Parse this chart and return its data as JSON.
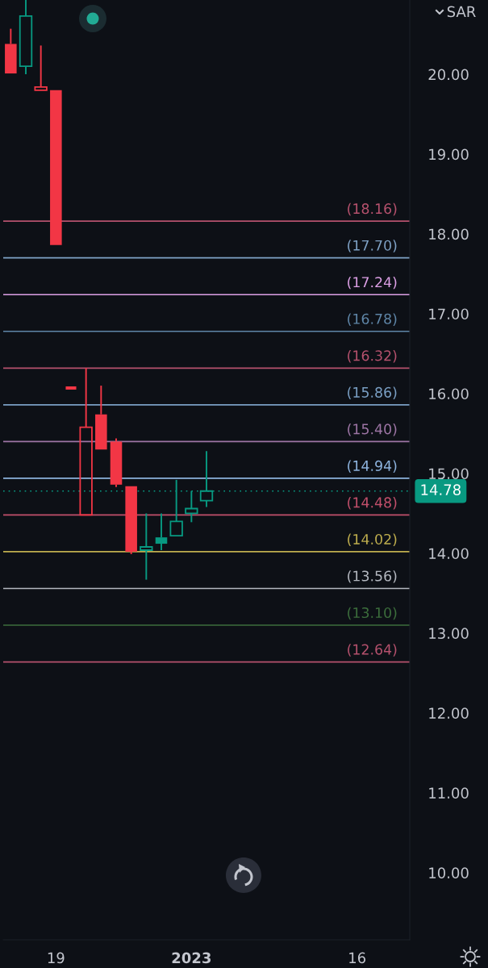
{
  "chart_data": {
    "type": "candlestick",
    "ylabel": "SAR",
    "categories": [
      null,
      null,
      null,
      "19",
      null,
      null,
      null,
      null,
      null,
      null,
      null,
      null,
      "2023",
      null,
      null,
      null,
      null,
      null,
      null,
      null,
      null,
      null,
      null,
      "16",
      null,
      null,
      null
    ],
    "ohlc": [
      [
        20.38,
        20.57,
        20.01,
        20.01
      ],
      [
        20.1,
        20.93,
        20.0,
        20.73
      ],
      [
        19.8,
        20.36,
        19.8,
        19.84
      ],
      [
        19.8,
        19.8,
        17.86,
        17.86
      ],
      [
        16.07,
        16.07,
        16.07,
        16.07
      ],
      [
        14.48,
        16.32,
        14.48,
        15.58
      ],
      [
        15.74,
        16.1,
        15.3,
        15.3
      ],
      [
        15.4,
        15.44,
        14.83,
        14.86
      ],
      [
        14.84,
        14.84,
        13.99,
        14.02
      ],
      [
        14.04,
        14.5,
        13.67,
        14.08
      ],
      [
        14.2,
        14.5,
        14.04,
        14.12
      ],
      [
        14.22,
        14.92,
        14.22,
        14.4
      ],
      [
        14.5,
        14.78,
        14.39,
        14.56
      ],
      [
        14.66,
        15.28,
        14.58,
        14.78
      ],
      null,
      null,
      null,
      null,
      null,
      null,
      null,
      null,
      null,
      null,
      null,
      null,
      null
    ],
    "colors": [
      "#f23645",
      "#089981",
      "#f23645",
      "#f23645",
      "#f23645",
      "#f23645",
      "#f23645",
      "#f23645",
      "#f23645",
      "#089981",
      "#089981",
      "#089981",
      "#089981",
      "#089981",
      null,
      null,
      null,
      null,
      null,
      null,
      null,
      null,
      null,
      null,
      null,
      null,
      null
    ],
    "ylim": [
      9.16,
      20.93
    ],
    "yticks": [
      {
        "value": 10,
        "label": "10.00"
      },
      {
        "value": 11,
        "label": "11.00"
      },
      {
        "value": 12,
        "label": "12.00"
      },
      {
        "value": 13,
        "label": "13.00"
      },
      {
        "value": 14,
        "label": "14.00"
      },
      {
        "value": 15,
        "label": "15.00"
      },
      {
        "value": 16,
        "label": "16.00"
      },
      {
        "value": 17,
        "label": "17.00"
      },
      {
        "value": 18,
        "label": "18.00"
      },
      {
        "value": 19,
        "label": "19.00"
      },
      {
        "value": 20,
        "label": "20.00"
      }
    ],
    "ref_lines": [
      {
        "axis": "y",
        "value": 18.16,
        "label": "(18.16)",
        "color": "#b5516d"
      },
      {
        "axis": "y",
        "value": 17.7,
        "label": "(17.70)",
        "color": "#7fa2c6"
      },
      {
        "axis": "y",
        "value": 17.24,
        "label": "(17.24)",
        "color": "#dda0e6"
      },
      {
        "axis": "y",
        "value": 16.78,
        "label": "(16.78)",
        "color": "#5f86a8"
      },
      {
        "axis": "y",
        "value": 16.32,
        "label": "(16.32)",
        "color": "#b5516d"
      },
      {
        "axis": "y",
        "value": 15.86,
        "label": "(15.86)",
        "color": "#7a9fc4"
      },
      {
        "axis": "y",
        "value": 15.4,
        "label": "(15.40)",
        "color": "#9d75a5"
      },
      {
        "axis": "y",
        "value": 14.94,
        "label": "(14.94)",
        "color": "#8db3de"
      },
      {
        "axis": "y",
        "value": 14.48,
        "label": "(14.48)",
        "color": "#c24f6b"
      },
      {
        "axis": "y",
        "value": 14.02,
        "label": "(14.02)",
        "color": "#bfae4e"
      },
      {
        "axis": "y",
        "value": 13.56,
        "label": "(13.56)",
        "color": "#b4b8c0"
      },
      {
        "axis": "y",
        "value": 13.1,
        "label": "(13.10)",
        "color": "#3c6e3c"
      },
      {
        "axis": "y",
        "value": 12.64,
        "label": "(12.64)",
        "color": "#b5516d"
      },
      {
        "axis": "y",
        "value": 14.78,
        "label": "14.78",
        "color": "#089981",
        "line_style": "dotted"
      }
    ]
  }
}
